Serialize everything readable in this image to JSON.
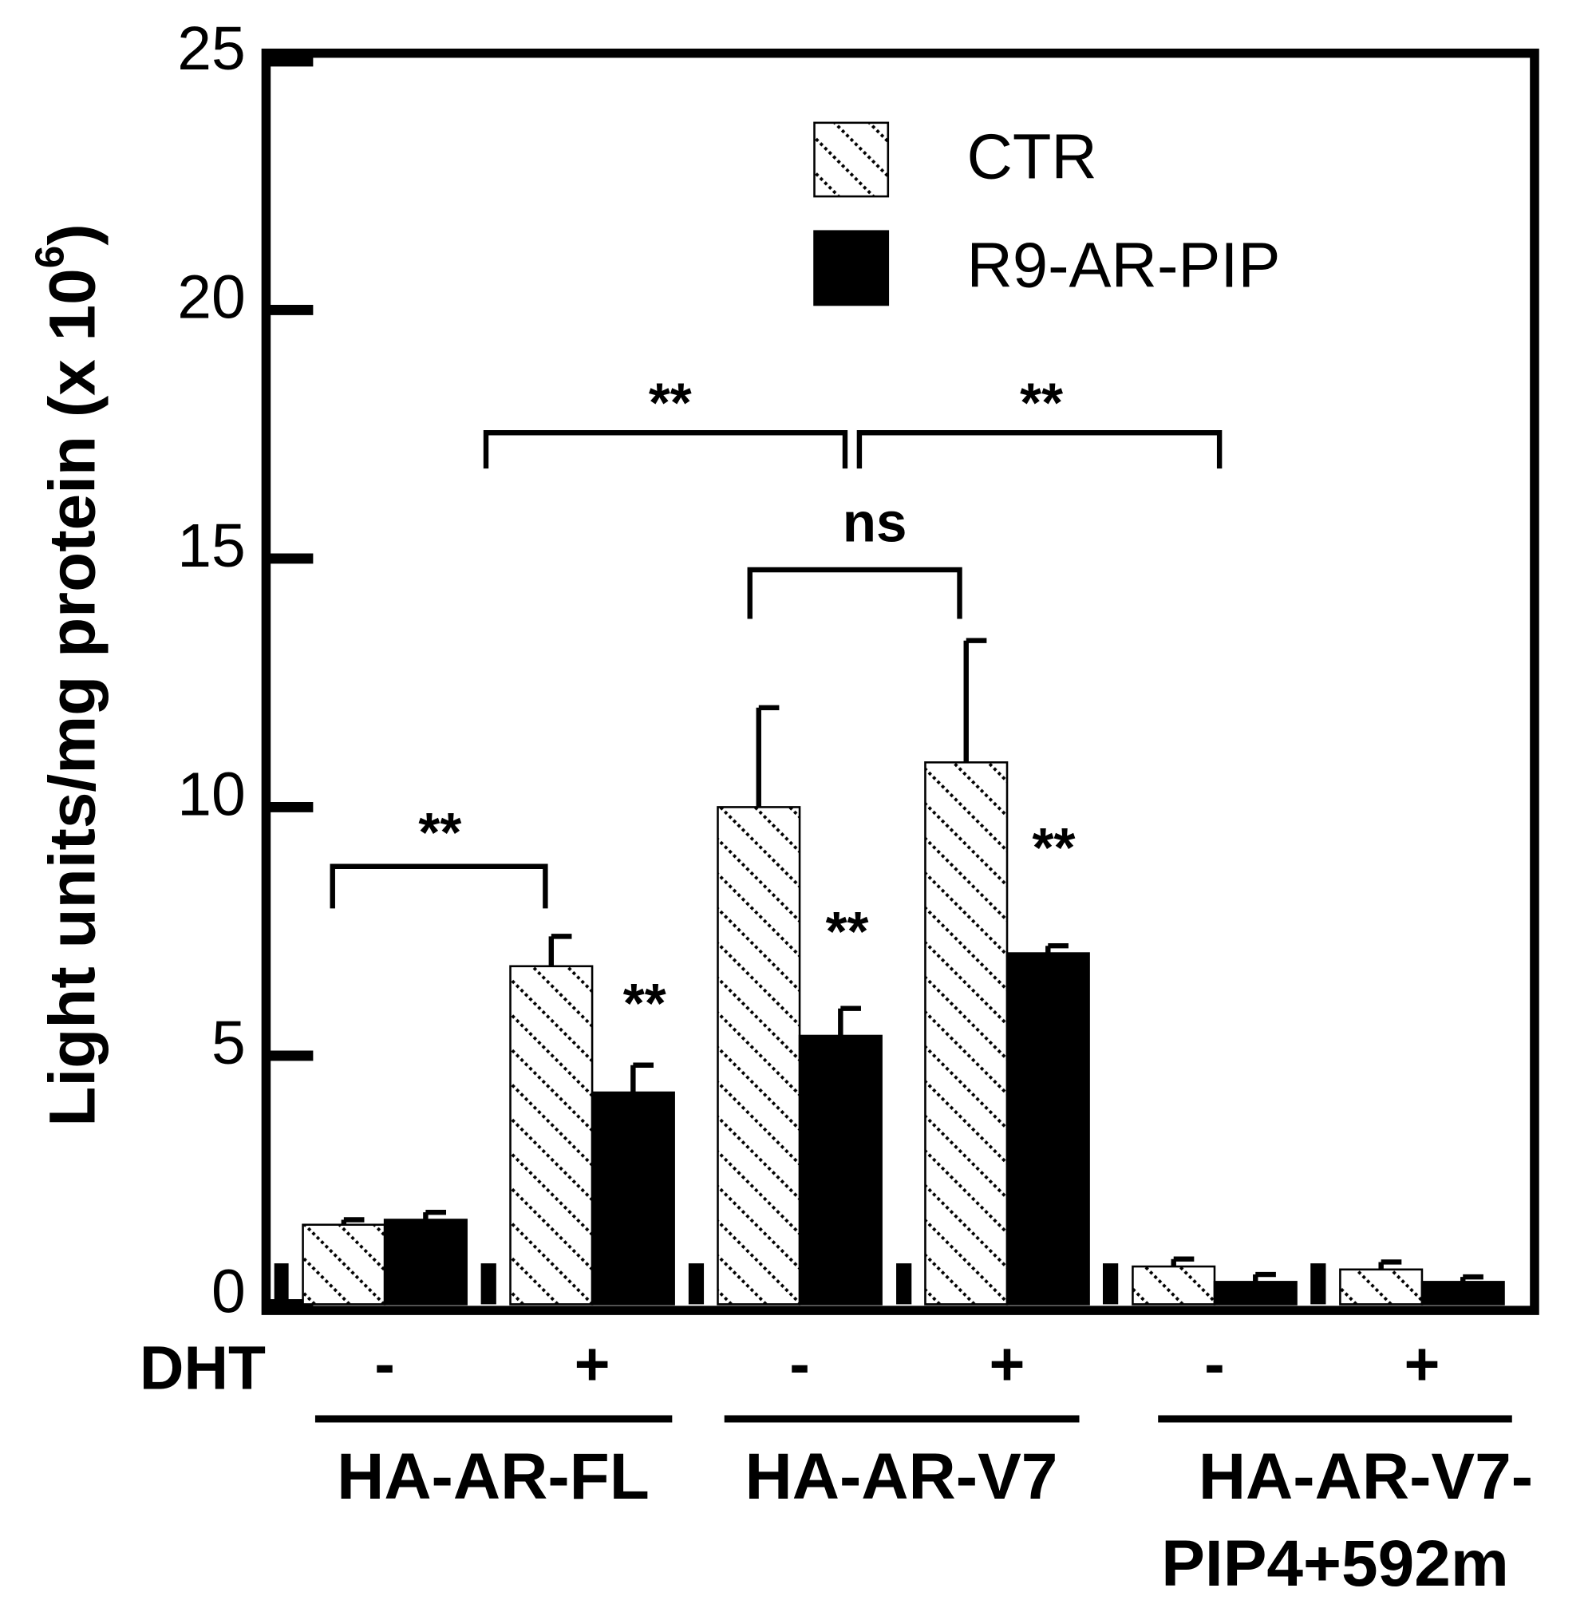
{
  "chart_data": {
    "type": "bar",
    "ylabel": "Light units/mg protein (x 10",
    "ylabel_sup": "6",
    "ylabel_end": ")",
    "row_label": "DHT",
    "categories": [
      "-",
      "+",
      "-",
      "+",
      "-",
      "+"
    ],
    "groups": [
      [
        "HA-AR-FL"
      ],
      [
        "HA-AR-V7"
      ],
      [
        "HA-AR-V7-",
        "PIP4+592m"
      ]
    ],
    "series": [
      {
        "name": "CTR",
        "color": "#ffffff",
        "pattern": "hatch",
        "values": [
          1.6,
          6.8,
          10.0,
          10.9,
          0.76,
          0.7
        ],
        "errors": [
          0.1,
          0.6,
          2.0,
          2.45,
          0.15,
          0.15
        ]
      },
      {
        "name": "R9-AR-PIP",
        "color": "#000000",
        "values": [
          1.7,
          4.26,
          5.4,
          7.06,
          0.45,
          0.45
        ],
        "errors": [
          0.15,
          0.55,
          0.55,
          0.15,
          0.15,
          0.1
        ]
      }
    ],
    "ylim": [
      0,
      25
    ],
    "yticks": [
      0,
      5,
      10,
      15,
      20,
      25
    ],
    "annotations": [
      "**",
      "**",
      "**",
      "**",
      "**",
      "**",
      "ns"
    ]
  }
}
